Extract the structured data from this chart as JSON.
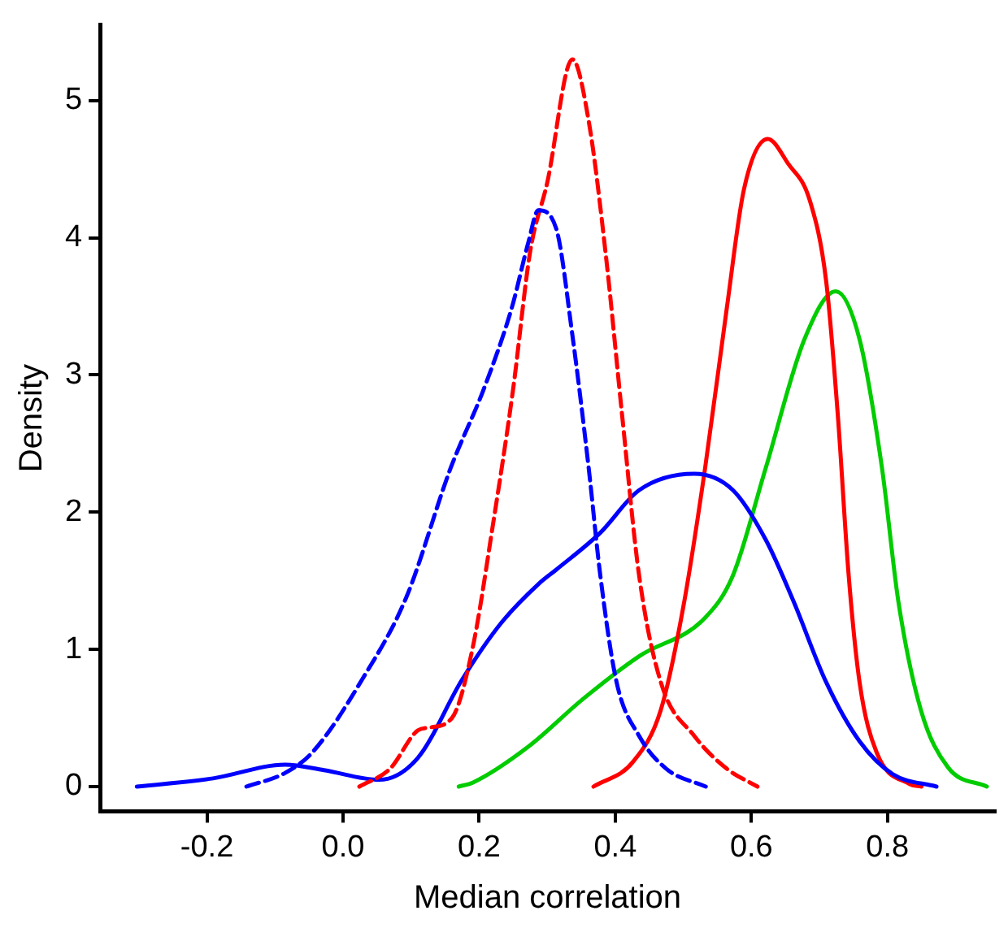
{
  "chart_data": {
    "type": "line",
    "xlabel": "Median correlation",
    "ylabel": "Density",
    "xlim": [
      -0.357,
      0.958
    ],
    "ylim": [
      -0.18,
      5.55
    ],
    "xticks": [
      -0.2,
      {
        "value": 0,
        "label": "0.0"
      },
      0.2,
      0.4,
      0.6,
      0.8
    ],
    "yticks": [
      0,
      1,
      2,
      3,
      4,
      5
    ],
    "series": [
      {
        "color": "#0000ff",
        "line_style": "dashed",
        "x": [
          -0.142,
          -0.085,
          -0.045,
          0.028,
          0.093,
          0.158,
          0.207,
          0.248,
          0.272,
          0.287,
          0.313,
          0.337,
          0.361,
          0.378,
          0.402,
          0.435,
          0.475,
          0.533
        ],
        "values": [
          0,
          0.1,
          0.25,
          0.78,
          1.38,
          2.32,
          2.9,
          3.49,
          3.96,
          4.2,
          4.07,
          3.29,
          2.32,
          1.54,
          0.76,
          0.37,
          0.13,
          0
        ]
      },
      {
        "color": "#ff0000",
        "line_style": "dashed",
        "x": [
          0.024,
          0.069,
          0.11,
          0.126,
          0.16,
          0.19,
          0.22,
          0.25,
          0.275,
          0.3,
          0.337,
          0.361,
          0.386,
          0.41,
          0.435,
          0.467,
          0.516,
          0.564,
          0.609
        ],
        "values": [
          0,
          0.13,
          0.41,
          0.43,
          0.5,
          1.0,
          1.9,
          2.9,
          3.9,
          4.4,
          5.3,
          4.85,
          3.88,
          2.71,
          1.54,
          0.76,
          0.37,
          0.13,
          0
        ]
      },
      {
        "color": "#0000ff",
        "x": [
          -0.303,
          -0.191,
          -0.085,
          -0.028,
          0.053,
          0.11,
          0.175,
          0.232,
          0.288,
          0.313,
          0.378,
          0.435,
          0.516,
          0.573,
          0.621,
          0.662,
          0.71,
          0.759,
          0.808,
          0.872
        ],
        "values": [
          0,
          0.06,
          0.16,
          0.12,
          0.05,
          0.21,
          0.78,
          1.19,
          1.48,
          1.58,
          1.85,
          2.16,
          2.28,
          2.16,
          1.8,
          1.35,
          0.76,
          0.33,
          0.09,
          0
        ]
      },
      {
        "color": "#ff0000",
        "x": [
          0.368,
          0.426,
          0.467,
          0.5,
          0.532,
          0.564,
          0.589,
          0.624,
          0.654,
          0.686,
          0.71,
          0.727,
          0.743,
          0.759,
          0.784,
          0.832,
          0.85
        ],
        "values": [
          0,
          0.18,
          0.56,
          1.31,
          2.32,
          3.49,
          4.35,
          4.72,
          4.54,
          4.27,
          3.68,
          2.71,
          1.54,
          0.76,
          0.25,
          0.02,
          0
        ]
      },
      {
        "color": "#00cc00",
        "x": [
          0.17,
          0.191,
          0.272,
          0.353,
          0.435,
          0.532,
          0.573,
          0.621,
          0.678,
          0.724,
          0.759,
          0.792,
          0.816,
          0.849,
          0.889,
          0.946
        ],
        "values": [
          0,
          0.03,
          0.29,
          0.64,
          0.95,
          1.23,
          1.54,
          2.32,
          3.26,
          3.61,
          3.26,
          2.32,
          1.35,
          0.56,
          0.14,
          0
        ]
      }
    ]
  }
}
